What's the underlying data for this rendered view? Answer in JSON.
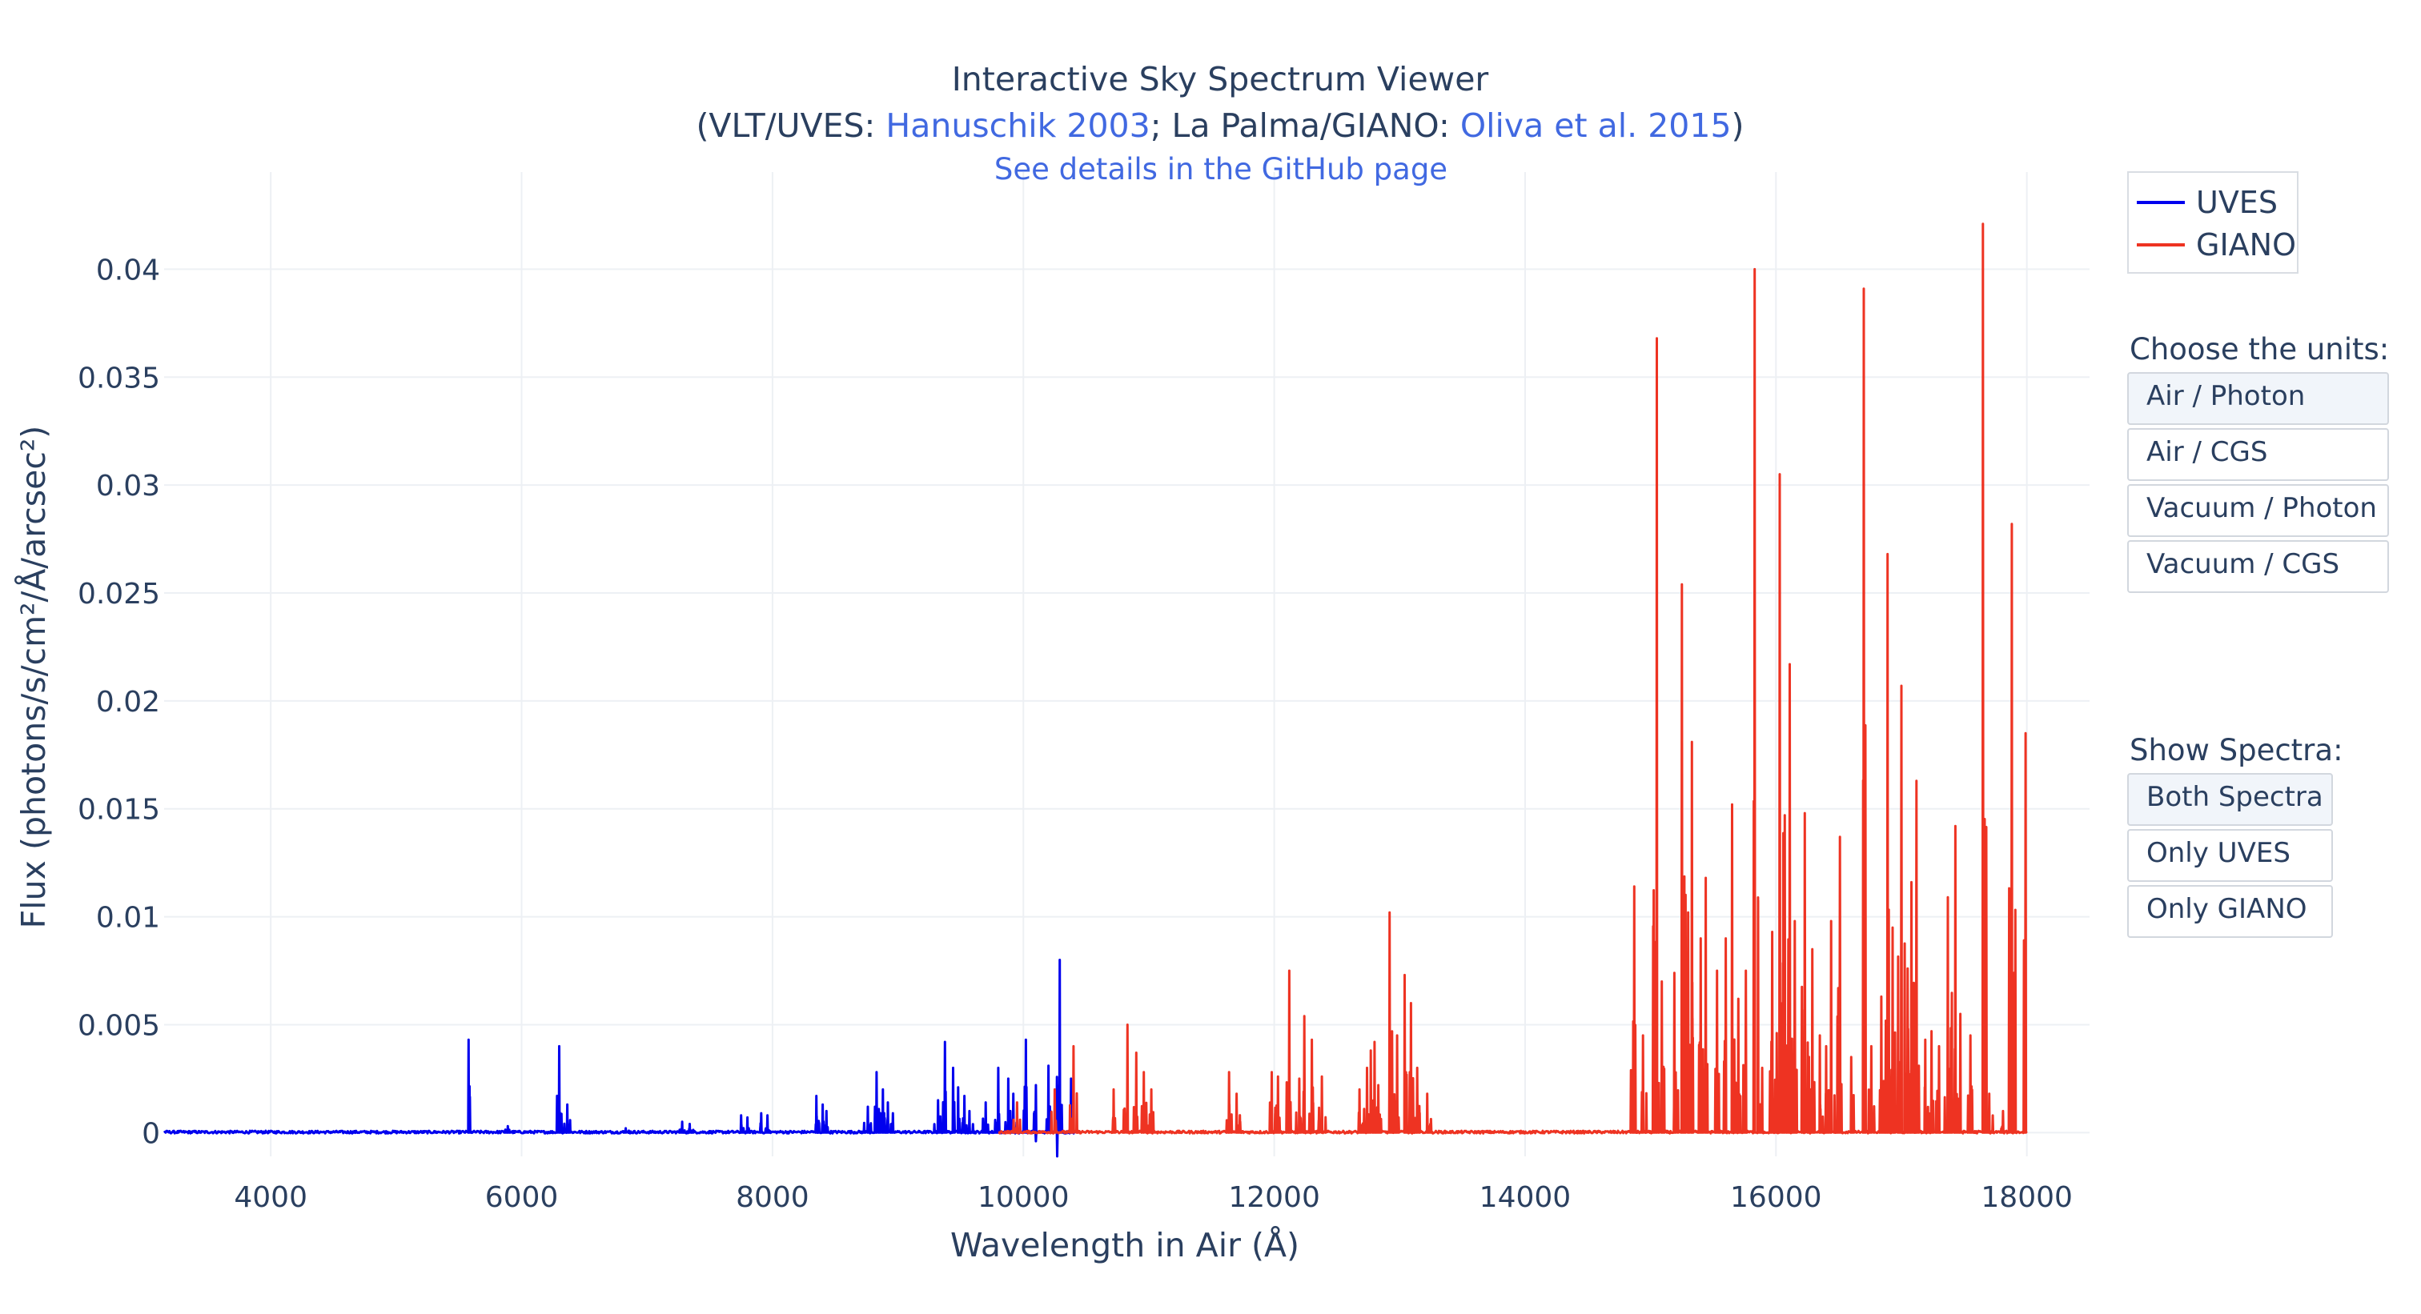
{
  "title": {
    "line1": "Interactive Sky Spectrum Viewer",
    "prefix": "(VLT/UVES: ",
    "ref1": "Hanuschik 2003",
    "middle": "; La Palma/GIANO: ",
    "ref2": "Oliva et al. 2015",
    "suffix": ")"
  },
  "github_link": "See details in the GitHub page",
  "legend": [
    {
      "name": "UVES",
      "color": "#0000ee"
    },
    {
      "name": "GIANO",
      "color": "#ee3322"
    }
  ],
  "units_menu": {
    "title": "Choose the units:",
    "buttons": [
      "Air / Photon",
      "Air / CGS",
      "Vacuum / Photon",
      "Vacuum / CGS"
    ],
    "active": 0
  },
  "spectra_menu": {
    "title": "Show Spectra:",
    "buttons": [
      "Both Spectra",
      "Only UVES",
      "Only GIANO"
    ],
    "active": 0
  },
  "chart_data": {
    "type": "line",
    "xlabel": "Wavelength in Air (Å)",
    "ylabel": "Flux (photons/s/cm²/Å/arcsec²)",
    "xlim": [
      3150,
      18500
    ],
    "ylim": [
      -0.0011,
      0.0445
    ],
    "xticks": [
      4000,
      6000,
      8000,
      10000,
      12000,
      14000,
      16000,
      18000
    ],
    "xtick_labels": [
      "4000",
      "6000",
      "8000",
      "10000",
      "12000",
      "14000",
      "16000",
      "18000"
    ],
    "yticks": [
      0,
      0.005,
      0.01,
      0.015,
      0.02,
      0.025,
      0.03,
      0.035,
      0.04
    ],
    "ytick_labels": [
      "0",
      "0.005",
      "0.01",
      "0.015",
      "0.02",
      "0.025",
      "0.03",
      "0.035",
      "0.04"
    ],
    "grid": true,
    "legend_position": "top-right",
    "series": [
      {
        "name": "UVES",
        "color": "#0000ee",
        "x_range": [
          3150,
          10420
        ],
        "lines": [
          [
            5577,
            0.0043
          ],
          [
            5890,
            0.0003
          ],
          [
            6300,
            0.004
          ],
          [
            6364,
            0.0013
          ],
          [
            6830,
            0.0002
          ],
          [
            7280,
            0.0005
          ],
          [
            7340,
            0.0004
          ],
          [
            7750,
            0.0008
          ],
          [
            7800,
            0.0007
          ],
          [
            7910,
            0.0009
          ],
          [
            7960,
            0.0008
          ],
          [
            8350,
            0.0017
          ],
          [
            8400,
            0.0013
          ],
          [
            8430,
            0.001
          ],
          [
            8760,
            0.0012
          ],
          [
            8830,
            0.0028
          ],
          [
            8880,
            0.002
          ],
          [
            8920,
            0.0014
          ],
          [
            8960,
            0.0009
          ],
          [
            9320,
            0.0015
          ],
          [
            9375,
            0.0042
          ],
          [
            9440,
            0.003
          ],
          [
            9480,
            0.0021
          ],
          [
            9530,
            0.0017
          ],
          [
            9570,
            0.001
          ],
          [
            9700,
            0.0014
          ],
          [
            9800,
            0.003
          ],
          [
            9880,
            0.0025
          ],
          [
            9920,
            0.0018
          ],
          [
            10020,
            0.0043
          ],
          [
            10100,
            0.0022
          ],
          [
            10200,
            0.0031
          ],
          [
            10290,
            0.008
          ],
          [
            10380,
            0.0025
          ]
        ],
        "dips": [
          [
            10270,
            -0.0011
          ],
          [
            10100,
            -0.0004
          ]
        ]
      },
      {
        "name": "GIANO",
        "color": "#ee3322",
        "x_range": [
          9800,
          18000
        ],
        "lines": [
          [
            9950,
            0.0014
          ],
          [
            10250,
            0.002
          ],
          [
            10400,
            0.004
          ],
          [
            10720,
            0.002
          ],
          [
            10830,
            0.005
          ],
          [
            10900,
            0.0037
          ],
          [
            10960,
            0.0028
          ],
          [
            11020,
            0.002
          ],
          [
            11640,
            0.0028
          ],
          [
            11700,
            0.0018
          ],
          [
            11980,
            0.0028
          ],
          [
            12030,
            0.0026
          ],
          [
            12120,
            0.0075
          ],
          [
            12200,
            0.0025
          ],
          [
            12240,
            0.0054
          ],
          [
            12300,
            0.0043
          ],
          [
            12380,
            0.0026
          ],
          [
            12680,
            0.002
          ],
          [
            12740,
            0.003
          ],
          [
            12770,
            0.0038
          ],
          [
            12800,
            0.0042
          ],
          [
            12830,
            0.0022
          ],
          [
            12920,
            0.0102
          ],
          [
            12980,
            0.0045
          ],
          [
            13040,
            0.0073
          ],
          [
            13090,
            0.006
          ],
          [
            13140,
            0.003
          ],
          [
            13220,
            0.0018
          ],
          [
            14870,
            0.0114
          ],
          [
            14940,
            0.0045
          ],
          [
            15050,
            0.0368
          ],
          [
            15090,
            0.007
          ],
          [
            15190,
            0.0074
          ],
          [
            15250,
            0.0254
          ],
          [
            15300,
            0.0102
          ],
          [
            15330,
            0.0181
          ],
          [
            15400,
            0.009
          ],
          [
            15440,
            0.0118
          ],
          [
            15530,
            0.0075
          ],
          [
            15600,
            0.009
          ],
          [
            15650,
            0.0152
          ],
          [
            15700,
            0.0062
          ],
          [
            15760,
            0.0075
          ],
          [
            15830,
            0.04
          ],
          [
            15890,
            0.003
          ],
          [
            15970,
            0.0093
          ],
          [
            16030,
            0.0305
          ],
          [
            16070,
            0.0147
          ],
          [
            16110,
            0.0217
          ],
          [
            16150,
            0.0098
          ],
          [
            16230,
            0.0148
          ],
          [
            16290,
            0.0085
          ],
          [
            16350,
            0.0045
          ],
          [
            16400,
            0.004
          ],
          [
            16440,
            0.0098
          ],
          [
            16510,
            0.0137
          ],
          [
            16600,
            0.0035
          ],
          [
            16700,
            0.0391
          ],
          [
            16760,
            0.004
          ],
          [
            16840,
            0.0063
          ],
          [
            16890,
            0.0268
          ],
          [
            16930,
            0.0095
          ],
          [
            17000,
            0.0207
          ],
          [
            17050,
            0.0076
          ],
          [
            17080,
            0.0116
          ],
          [
            17120,
            0.0163
          ],
          [
            17190,
            0.0043
          ],
          [
            17240,
            0.0047
          ],
          [
            17300,
            0.004
          ],
          [
            17370,
            0.0109
          ],
          [
            17430,
            0.0142
          ],
          [
            17470,
            0.0055
          ],
          [
            17550,
            0.0045
          ],
          [
            17650,
            0.0421
          ],
          [
            17700,
            0.0018
          ],
          [
            17810,
            0.001
          ],
          [
            17880,
            0.0282
          ],
          [
            17990,
            0.0185
          ]
        ]
      }
    ]
  }
}
